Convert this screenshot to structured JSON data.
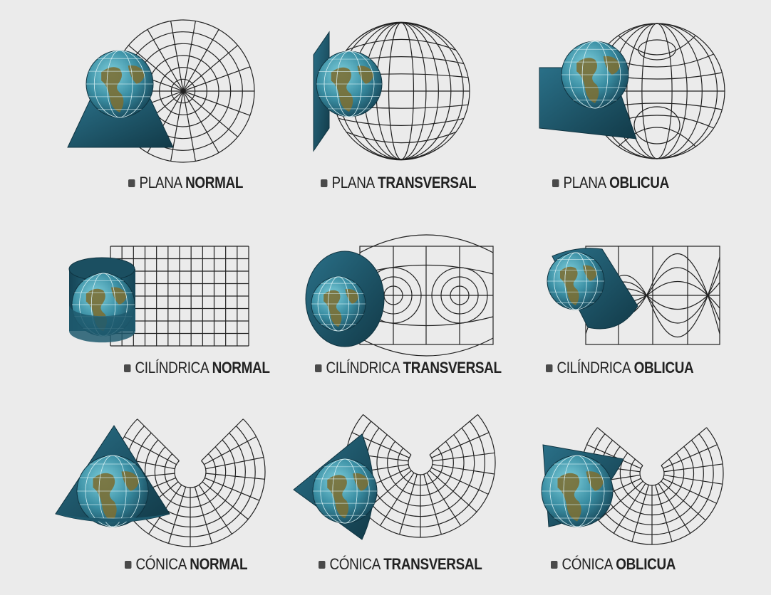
{
  "diagram": {
    "colors": {
      "background": "#ebebeb",
      "surface": "#1e5a6e",
      "surface_dark": "#123a48",
      "ocean": "#3a8ea3",
      "land": "#7a6f35",
      "grid": "#222222"
    },
    "projections": [
      {
        "id": "plana-normal",
        "word": "PLANA",
        "variant": "NORMAL",
        "surface": "plane",
        "aspect": "normal"
      },
      {
        "id": "plana-transversal",
        "word": "PLANA",
        "variant": "TRANSVERSAL",
        "surface": "plane",
        "aspect": "transverse"
      },
      {
        "id": "plana-oblicua",
        "word": "PLANA",
        "variant": "OBLICUA",
        "surface": "plane",
        "aspect": "oblique"
      },
      {
        "id": "cilindrica-normal",
        "word": "CILÍNDRICA",
        "variant": "NORMAL",
        "surface": "cylinder",
        "aspect": "normal"
      },
      {
        "id": "cilindrica-transversal",
        "word": "CILÍNDRICA",
        "variant": "TRANSVERSAL",
        "surface": "cylinder",
        "aspect": "transverse"
      },
      {
        "id": "cilindrica-oblicua",
        "word": "CILÍNDRICA",
        "variant": "OBLICUA",
        "surface": "cylinder",
        "aspect": "oblique"
      },
      {
        "id": "conica-normal",
        "word": "CÓNICA",
        "variant": "NORMAL",
        "surface": "cone",
        "aspect": "normal"
      },
      {
        "id": "conica-transversal",
        "word": "CÓNICA",
        "variant": "TRANSVERSAL",
        "surface": "cone",
        "aspect": "transverse"
      },
      {
        "id": "conica-oblicua",
        "word": "CÓNICA",
        "variant": "OBLICUA",
        "surface": "cone",
        "aspect": "oblique"
      }
    ]
  }
}
